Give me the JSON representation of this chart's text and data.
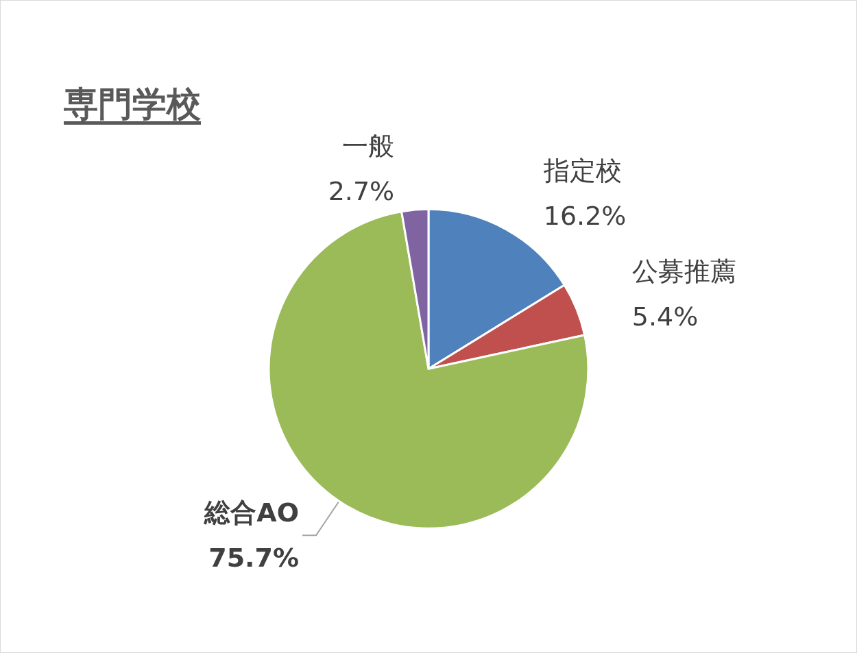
{
  "chart_data": {
    "type": "pie",
    "title": "専門学校",
    "categories": [
      "指定校",
      "公募推薦",
      "総合AO",
      "一般"
    ],
    "values": [
      16.2,
      5.4,
      75.7,
      2.7
    ],
    "value_labels": [
      "16.2%",
      "5.4%",
      "75.7%",
      "2.7%"
    ],
    "colors": [
      "#4f81bd",
      "#c0504d",
      "#9bbb59",
      "#8064a2"
    ],
    "legend": false
  }
}
